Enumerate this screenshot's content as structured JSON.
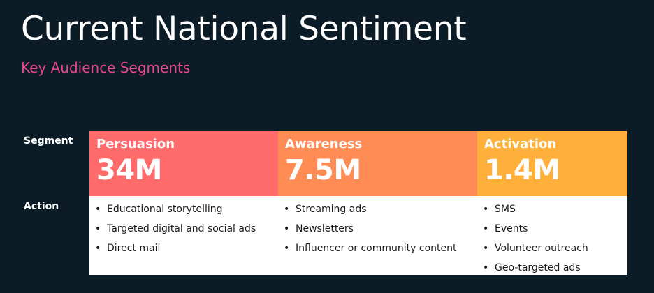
{
  "title": "Current National Sentiment",
  "subtitle": "Key Audience Segments",
  "row_labels": {
    "segment": "Segment",
    "action": "Action"
  },
  "colors": {
    "background": "#0b1c26",
    "subtitle": "#e8488a",
    "persuasion": "#ff6a6a",
    "awareness": "#ff8c54",
    "activation": "#ffb03a"
  },
  "segments": [
    {
      "name": "Persuasion",
      "value": "34M",
      "actions": [
        "Educational storytelling",
        "Targeted digital and social ads",
        "Direct mail"
      ]
    },
    {
      "name": "Awareness",
      "value": "7.5M",
      "actions": [
        "Streaming ads",
        "Newsletters",
        "Influencer or community content"
      ]
    },
    {
      "name": "Activation",
      "value": "1.4M",
      "actions": [
        "SMS",
        "Events",
        "Volunteer outreach",
        "Geo-targeted ads"
      ]
    }
  ]
}
